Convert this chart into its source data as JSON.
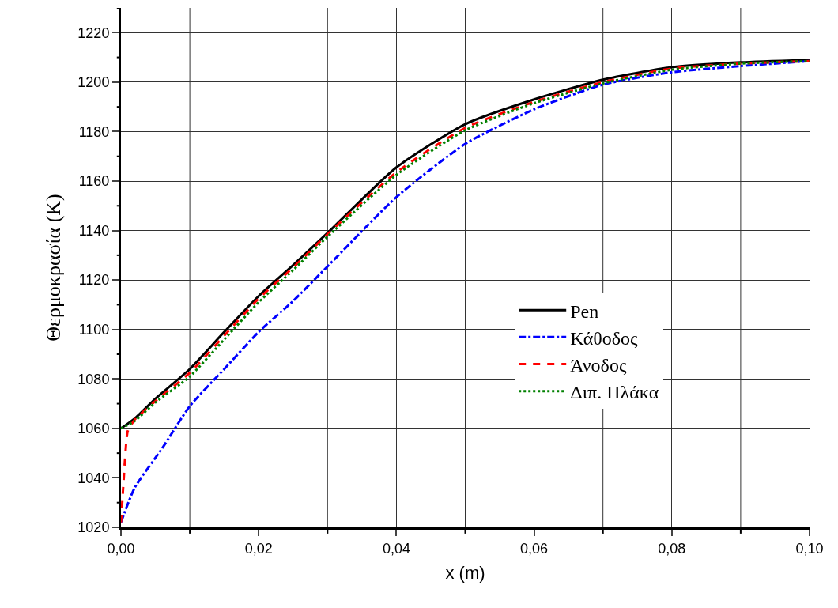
{
  "chart_data": {
    "type": "line",
    "xlabel": "x (m)",
    "ylabel": "Θερμοκρασία (K)",
    "xlim": [
      0,
      0.1
    ],
    "ylim": [
      1020,
      1230
    ],
    "xticks": [
      {
        "value": 0,
        "label": "0,00"
      },
      {
        "value": 0.01,
        "label": null
      },
      {
        "value": 0.02,
        "label": "0,02"
      },
      {
        "value": 0.03,
        "label": null
      },
      {
        "value": 0.04,
        "label": "0,04"
      },
      {
        "value": 0.05,
        "label": null
      },
      {
        "value": 0.06,
        "label": "0,06"
      },
      {
        "value": 0.07,
        "label": null
      },
      {
        "value": 0.08,
        "label": "0,08"
      },
      {
        "value": 0.09,
        "label": null
      },
      {
        "value": 0.1,
        "label": "0,10"
      }
    ],
    "yticks": [
      1020,
      {
        "value": 1030,
        "label": null
      },
      1040,
      {
        "value": 1050,
        "label": null
      },
      1060,
      {
        "value": 1070,
        "label": null
      },
      1080,
      {
        "value": 1090,
        "label": null
      },
      1100,
      {
        "value": 1110,
        "label": null
      },
      1120,
      {
        "value": 1130,
        "label": null
      },
      1140,
      {
        "value": 1150,
        "label": null
      },
      1160,
      {
        "value": 1170,
        "label": null
      },
      1180,
      {
        "value": 1190,
        "label": null
      },
      1200,
      {
        "value": 1210,
        "label": null
      },
      1220,
      {
        "value": 1230,
        "label": null
      }
    ],
    "grid": true,
    "legend": "right",
    "marker": "none",
    "x": [
      0,
      0.002,
      0.005,
      0.01,
      0.015,
      0.02,
      0.025,
      0.03,
      0.04,
      0.05,
      0.06,
      0.07,
      0.08,
      0.09,
      0.1
    ],
    "series": [
      {
        "name": "Pen",
        "color": "#000000",
        "line_style": "solid",
        "values": [
          1060,
          1064,
          1072,
          1084,
          1099,
          1113.5,
          1126,
          1139,
          1165.5,
          1183,
          1193,
          1201,
          1206,
          1208,
          1209
        ]
      },
      {
        "name": "Κάθοδος",
        "color": "#0000ff",
        "line_style": "dashdot",
        "x": [
          0,
          0.002,
          0.006,
          0.01,
          0.015,
          0.02,
          0.025,
          0.03,
          0.04,
          0.05,
          0.06,
          0.07,
          0.08,
          0.09,
          0.1
        ],
        "values": [
          1022,
          1036,
          1052,
          1069,
          1084,
          1099,
          1111.5,
          1125.5,
          1153.5,
          1175,
          1189,
          1199,
          1204,
          1206.5,
          1208.5
        ]
      },
      {
        "name": "Άνοδος",
        "color": "#ff0000",
        "line_style": "dashed",
        "x": [
          0,
          0.0003,
          0.0006,
          0.001,
          0.002,
          0.005,
          0.01,
          0.015,
          0.02,
          0.025,
          0.03,
          0.04,
          0.05,
          0.06,
          0.07,
          0.08,
          0.09,
          0.1
        ],
        "values": [
          1022,
          1035,
          1048,
          1059,
          1063.5,
          1071,
          1082.5,
          1097.5,
          1112.5,
          1125,
          1138.5,
          1163.5,
          1181.5,
          1192,
          1200,
          1205.5,
          1207.5,
          1208.5
        ]
      },
      {
        "name": "Διπ. Πλάκα",
        "color": "#008000",
        "line_style": "dotted",
        "values": [
          1060,
          1063,
          1070.5,
          1081,
          1096,
          1111,
          1124,
          1137.5,
          1162.5,
          1180.5,
          1191.5,
          1199.5,
          1205,
          1207.5,
          1208.5
        ]
      }
    ]
  }
}
